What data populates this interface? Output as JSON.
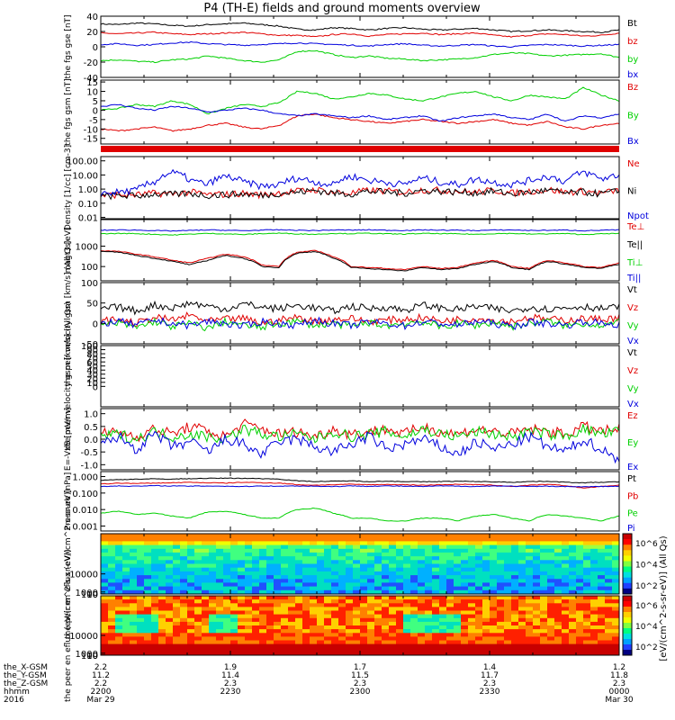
{
  "title": "P4 (TH-E) fields and ground moments overview",
  "colors": {
    "black": "#000000",
    "red": "#e00000",
    "green": "#00d000",
    "blue": "#0000dd",
    "frame": "#000000"
  },
  "time_axis": {
    "major_ticks": [
      "2200",
      "2230",
      "2300",
      "2330",
      "0000"
    ],
    "rows": [
      {
        "label": "the_X-GSM",
        "values": [
          "2.2",
          "1.9",
          "1.7",
          "1.4",
          "1.2"
        ]
      },
      {
        "label": "the_Y-GSM",
        "values": [
          "11.2",
          "11.4",
          "11.5",
          "11.7",
          "11.8"
        ]
      },
      {
        "label": "the_Z-GSM",
        "values": [
          "2.2",
          "2.3",
          "2.3",
          "2.3",
          "2.3"
        ]
      },
      {
        "label": "hhmm",
        "values": [
          "2200",
          "2230",
          "2300",
          "2330",
          "0000"
        ]
      },
      {
        "label": "2016",
        "values": [
          "Mar 29",
          "",
          "",
          "",
          "Mar 30"
        ]
      }
    ]
  },
  "colorbar": {
    "label": "[eV/(cm^2-s-sr-eV)] (All Qs)",
    "ticks": [
      "10^6",
      "10^4",
      "10^2"
    ]
  },
  "chart_data": [
    {
      "type": "line",
      "ylabel": "the fgs gse [nT]",
      "ylim": [
        -40,
        40
      ],
      "yticks": [
        "40",
        "20",
        "0",
        "-20",
        "-40"
      ],
      "series": [
        {
          "name": "Bt",
          "color": "black",
          "values": [
            30,
            29,
            31,
            30,
            28,
            27,
            29,
            30,
            31,
            29,
            27,
            23,
            22,
            25,
            24,
            22,
            24,
            25,
            23,
            22,
            23,
            24,
            22,
            20,
            21,
            22,
            21,
            20,
            19,
            22
          ]
        },
        {
          "name": "bz",
          "color": "red",
          "values": [
            18,
            17,
            18,
            19,
            17,
            16,
            17,
            18,
            19,
            17,
            15,
            15,
            13,
            16,
            17,
            14,
            16,
            17,
            18,
            16,
            17,
            18,
            15,
            13,
            15,
            17,
            16,
            14,
            15,
            18
          ]
        },
        {
          "name": "by",
          "color": "green",
          "values": [
            -18,
            -17,
            -19,
            -20,
            -17,
            -16,
            -12,
            -15,
            -18,
            -20,
            -17,
            -6,
            -5,
            -10,
            -14,
            -12,
            -15,
            -16,
            -18,
            -17,
            -16,
            -14,
            -10,
            -8,
            -9,
            -12,
            -11,
            -10,
            -9,
            -14
          ]
        },
        {
          "name": "bx",
          "color": "blue",
          "values": [
            3,
            4,
            2,
            3,
            5,
            6,
            4,
            3,
            2,
            3,
            4,
            5,
            4,
            3,
            2,
            1,
            3,
            4,
            2,
            1,
            2,
            3,
            1,
            0,
            2,
            3,
            2,
            1,
            2,
            3
          ]
        }
      ]
    },
    {
      "type": "line",
      "ylabel": "the fgs gsm [nT]",
      "ylim": [
        -18,
        16
      ],
      "yticks": [
        "15",
        "10",
        "5",
        "0",
        "-5",
        "-10",
        "-15"
      ],
      "series": [
        {
          "name": "Bz",
          "color": "red",
          "values": [
            -10,
            -11,
            -10,
            -9,
            -11,
            -10,
            -8,
            -7,
            -9,
            -10,
            -8,
            -3,
            -2,
            -4,
            -5,
            -6,
            -7,
            -6,
            -5,
            -6,
            -7,
            -6,
            -5,
            -7,
            -8,
            -6,
            -9,
            -10,
            -8,
            -7
          ]
        },
        {
          "name": "By",
          "color": "green",
          "values": [
            0,
            1,
            3,
            2,
            5,
            3,
            -2,
            1,
            3,
            2,
            4,
            10,
            9,
            6,
            7,
            9,
            8,
            6,
            5,
            7,
            9,
            10,
            7,
            5,
            8,
            7,
            6,
            12,
            8,
            5
          ]
        },
        {
          "name": "Bx",
          "color": "blue",
          "values": [
            2,
            3,
            1,
            0,
            2,
            1,
            -1,
            0,
            1,
            0,
            -2,
            -3,
            -2,
            -3,
            -4,
            -3,
            -5,
            -4,
            -3,
            -6,
            -4,
            -3,
            -2,
            -4,
            -5,
            -2,
            -6,
            -3,
            -4,
            -2
          ]
        }
      ]
    },
    {
      "type": "line",
      "log": true,
      "ylabel": "Density [1/cc] [cm-3]",
      "ylim": [
        0.008,
        200
      ],
      "yticks": [
        "100.00",
        "10.00",
        "1.00",
        "0.10",
        "0.01"
      ],
      "series": [
        {
          "name": "Ne",
          "color": "red",
          "values": [
            0.35,
            0.4,
            0.38,
            0.5,
            0.45,
            0.6,
            0.4,
            0.42,
            0.5,
            0.38,
            0.55,
            0.7,
            0.9,
            0.6,
            0.5,
            0.8,
            0.7,
            0.6,
            0.9,
            0.8,
            0.7,
            0.6,
            0.8,
            0.5,
            0.7,
            0.9,
            0.6,
            0.7,
            0.5,
            0.8
          ]
        },
        {
          "name": "Ni",
          "color": "black",
          "values": [
            0.3,
            0.35,
            0.32,
            0.45,
            0.4,
            0.5,
            0.35,
            0.4,
            0.45,
            0.35,
            0.5,
            0.6,
            0.8,
            0.5,
            0.45,
            0.7,
            0.6,
            0.5,
            0.8,
            0.7,
            0.6,
            0.55,
            0.7,
            0.45,
            0.6,
            0.8,
            0.5,
            0.6,
            0.45,
            0.7
          ]
        },
        {
          "name": "Npot",
          "color": "blue",
          "values": [
            0.5,
            0.6,
            0.8,
            3,
            15,
            4,
            2,
            8,
            3,
            1.5,
            2,
            6,
            3,
            2,
            8,
            4,
            3,
            2,
            6,
            3,
            2,
            5,
            3,
            2,
            4,
            8,
            3,
            15,
            5,
            10
          ]
        }
      ]
    },
    {
      "type": "line",
      "log": true,
      "ylabel": "magt3 [eV]",
      "ylim": [
        20,
        20000
      ],
      "yticks": [
        "1000",
        "100"
      ],
      "series": [
        {
          "name": "Te⊥",
          "color": "red",
          "values": [
            600,
            550,
            400,
            300,
            200,
            150,
            250,
            400,
            300,
            120,
            100,
            500,
            600,
            300,
            100,
            90,
            80,
            70,
            100,
            80,
            90,
            150,
            200,
            100,
            80,
            200,
            150,
            100,
            90,
            150
          ]
        },
        {
          "name": "Te||",
          "color": "black",
          "values": [
            550,
            500,
            350,
            250,
            180,
            120,
            200,
            350,
            250,
            100,
            90,
            450,
            550,
            250,
            90,
            80,
            70,
            60,
            90,
            70,
            80,
            130,
            180,
            90,
            70,
            180,
            130,
            90,
            80,
            130
          ]
        },
        {
          "name": "Ti⊥",
          "color": "green",
          "values": [
            4000,
            4200,
            4100,
            3800,
            3500,
            3900,
            4200,
            4000,
            3700,
            4100,
            4300,
            4000,
            3800,
            4200,
            4100,
            4300,
            4000,
            3900,
            4200,
            4100,
            4000,
            3800,
            4100,
            4200,
            3900,
            4000,
            4100,
            3700,
            4000,
            4200
          ]
        },
        {
          "name": "Ti||",
          "color": "blue",
          "values": [
            6000,
            6200,
            6100,
            5800,
            5500,
            5900,
            6200,
            6000,
            5700,
            6100,
            6300,
            6000,
            5800,
            6200,
            6100,
            6300,
            6000,
            5900,
            6200,
            6100,
            6000,
            5800,
            6100,
            6200,
            5900,
            6000,
            6100,
            5700,
            6000,
            6200
          ]
        }
      ]
    },
    {
      "type": "line",
      "ylabel": "the peir velocity gsm [km/s] (All Qs)",
      "ylim": [
        -50,
        100
      ],
      "yticks": [
        "100",
        "50",
        "0",
        "-50"
      ],
      "series": [
        {
          "name": "Vt",
          "color": "black",
          "values": [
            35,
            40,
            30,
            45,
            38,
            50,
            42,
            35,
            48,
            40,
            36,
            44,
            38,
            30,
            42,
            36,
            40,
            32,
            45,
            38,
            34,
            42,
            36,
            30,
            40,
            35,
            38,
            42,
            36,
            40
          ]
        },
        {
          "name": "Vz",
          "color": "red",
          "values": [
            5,
            10,
            0,
            15,
            8,
            20,
            5,
            10,
            12,
            0,
            8,
            15,
            5,
            10,
            12,
            5,
            8,
            10,
            14,
            6,
            10,
            12,
            8,
            5,
            15,
            10,
            8,
            12,
            10,
            15
          ]
        },
        {
          "name": "Vy",
          "color": "green",
          "values": [
            -5,
            0,
            -10,
            5,
            -8,
            0,
            -12,
            5,
            -5,
            -10,
            0,
            5,
            -5,
            0,
            -8,
            2,
            -6,
            0,
            5,
            -10,
            0,
            -5,
            3,
            -8,
            0,
            5,
            -6,
            0,
            -4,
            2
          ]
        },
        {
          "name": "Vx",
          "color": "blue",
          "values": [
            0,
            5,
            -5,
            8,
            0,
            -5,
            5,
            0,
            -8,
            5,
            0,
            -5,
            8,
            0,
            -5,
            3,
            0,
            -6,
            4,
            0,
            -5,
            5,
            0,
            -8,
            3,
            0,
            -5,
            5,
            0,
            -3
          ]
        }
      ]
    },
    {
      "type": "line",
      "ylabel": "the peer velocity gsm [km/s] (All Qs)",
      "ylim": [
        -50,
        100
      ],
      "yticks": [
        "100",
        "90",
        "80",
        "70",
        "60",
        "50",
        "40",
        "30",
        "20",
        "10",
        "0"
      ],
      "series": [
        {
          "name": "Vt",
          "color": "black",
          "values": []
        },
        {
          "name": "Vz",
          "color": "red",
          "values": []
        },
        {
          "name": "Vy",
          "color": "green",
          "values": []
        },
        {
          "name": "Vx",
          "color": "blue",
          "values": []
        }
      ]
    },
    {
      "type": "line",
      "ylabel": "E=-VxB [mV/m]",
      "ylim": [
        -1.2,
        1.2
      ],
      "yticks": [
        "1.0",
        "0.5",
        "0.0",
        "-0.5",
        "-1.0"
      ],
      "series": [
        {
          "name": "Ez",
          "color": "red",
          "values": [
            0.2,
            0.3,
            0.1,
            0.4,
            0.2,
            0.5,
            0.3,
            0.1,
            0.6,
            0.4,
            0.2,
            0.3,
            0.1,
            0.4,
            0.2,
            0.3,
            0.4,
            0.2,
            0.5,
            0.3,
            0.2,
            0.4,
            0.3,
            0.2,
            0.4,
            0.3,
            0.2,
            0.5,
            0.3,
            0.4
          ]
        },
        {
          "name": "Ey",
          "color": "green",
          "values": [
            0.1,
            0.2,
            0.0,
            0.3,
            0.1,
            0.2,
            0.1,
            0.0,
            0.4,
            0.2,
            0.1,
            0.2,
            0.0,
            0.3,
            0.1,
            0.2,
            0.3,
            0.1,
            0.4,
            0.2,
            0.1,
            0.3,
            0.2,
            0.1,
            0.3,
            0.2,
            0.1,
            0.4,
            0.2,
            0.3
          ]
        },
        {
          "name": "Ex",
          "color": "blue",
          "values": [
            -0.2,
            0.1,
            -0.4,
            0.2,
            -0.3,
            -0.1,
            -0.5,
            0.0,
            -0.2,
            -0.6,
            -0.1,
            0.0,
            -0.3,
            -0.5,
            -0.2,
            0.1,
            -0.4,
            -0.2,
            0.0,
            -0.3,
            -0.6,
            -0.1,
            -0.4,
            -0.2,
            0.1,
            -0.3,
            -0.5,
            0.0,
            -0.4,
            -0.8
          ]
        }
      ]
    },
    {
      "type": "line",
      "log": true,
      "ylabel": "Pressure [nPa]",
      "ylim": [
        0.0005,
        2
      ],
      "yticks": [
        "1.000",
        "0.100",
        "0.010",
        "0.001"
      ],
      "series": [
        {
          "name": "Pt",
          "color": "black",
          "values": [
            0.6,
            0.65,
            0.7,
            0.72,
            0.7,
            0.75,
            0.78,
            0.8,
            0.78,
            0.75,
            0.7,
            0.55,
            0.5,
            0.52,
            0.55,
            0.5,
            0.52,
            0.5,
            0.48,
            0.5,
            0.52,
            0.5,
            0.48,
            0.45,
            0.5,
            0.52,
            0.45,
            0.42,
            0.45,
            0.48
          ]
        },
        {
          "name": "Pb",
          "color": "red",
          "values": [
            0.35,
            0.4,
            0.38,
            0.4,
            0.42,
            0.45,
            0.42,
            0.4,
            0.45,
            0.42,
            0.4,
            0.32,
            0.3,
            0.32,
            0.34,
            0.32,
            0.33,
            0.32,
            0.3,
            0.32,
            0.34,
            0.32,
            0.3,
            0.25,
            0.3,
            0.33,
            0.28,
            0.2,
            0.25,
            0.3
          ]
        },
        {
          "name": "Pe",
          "color": "green",
          "values": [
            0.006,
            0.008,
            0.005,
            0.006,
            0.004,
            0.003,
            0.007,
            0.008,
            0.005,
            0.003,
            0.003,
            0.01,
            0.012,
            0.006,
            0.003,
            0.003,
            0.002,
            0.002,
            0.003,
            0.003,
            0.002,
            0.004,
            0.005,
            0.003,
            0.002,
            0.005,
            0.004,
            0.003,
            0.002,
            0.004
          ]
        },
        {
          "name": "Pi",
          "color": "blue",
          "values": [
            0.25,
            0.27,
            0.26,
            0.28,
            0.27,
            0.26,
            0.27,
            0.26,
            0.25,
            0.27,
            0.26,
            0.27,
            0.26,
            0.25,
            0.27,
            0.26,
            0.27,
            0.26,
            0.25,
            0.27,
            0.26,
            0.25,
            0.27,
            0.26,
            0.25,
            0.26,
            0.25,
            0.24,
            0.25,
            0.26
          ]
        }
      ]
    },
    {
      "type": "heatmap",
      "ylabel": "the peir en eflux (eV/(cm^2-s-sr-eV))",
      "ylim": [
        5,
        30000
      ],
      "yticks": [
        "10000",
        "1000",
        "100",
        "10"
      ]
    },
    {
      "type": "heatmap",
      "ylabel": "the peer en eflux (eV/(cm^2-s-sr-eV))",
      "ylim": [
        5,
        30000
      ],
      "yticks": [
        "10000",
        "1000",
        "100",
        "10"
      ]
    }
  ]
}
